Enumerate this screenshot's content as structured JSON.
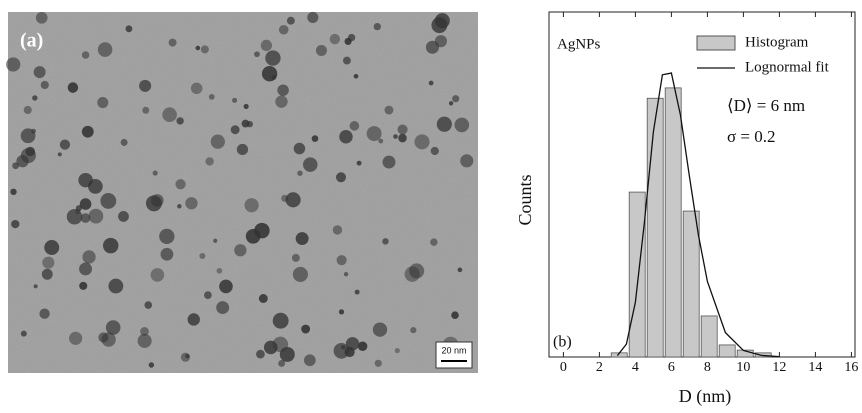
{
  "image": {
    "label": "(a)",
    "scale_bar": "20 nm"
  },
  "chart_data": {
    "type": "histogram",
    "name": "Histogram",
    "bins": [
      2.6,
      3.6,
      4.6,
      5.6,
      6.6,
      7.6,
      8.6,
      9.6,
      10.6,
      11.6
    ],
    "counts": [
      1.2,
      47.8,
      75,
      78,
      42.3,
      11.9,
      3.5,
      2,
      1.2
    ],
    "color": "#c8c8c8",
    "edgecolor": "#555555",
    "fit": {
      "name": "Lognormal fit",
      "color": "#111111",
      "x": [
        3,
        3.5,
        4,
        4.5,
        5,
        5.5,
        6,
        6.5,
        7,
        7.5,
        8,
        9,
        10,
        11,
        12
      ],
      "values": [
        0.41,
        3.74,
        15.9,
        39,
        65.3,
        81.8,
        82.3,
        70.2,
        52.4,
        35.4,
        21.9,
        7.06,
        1.89,
        0.46,
        0.1
      ]
    },
    "xlabel": "D (nm)",
    "ylabel": "Counts",
    "xlim": [
      -0.8,
      16.2
    ],
    "ylim": [
      0,
      100
    ],
    "xticks": [
      0,
      2,
      4,
      6,
      8,
      10,
      12,
      14,
      16
    ],
    "annotations": [
      "AgNPs",
      "(b)",
      "⟨D⟩ = 6 nm",
      "σ = 0.2"
    ],
    "legend": "upper right"
  }
}
